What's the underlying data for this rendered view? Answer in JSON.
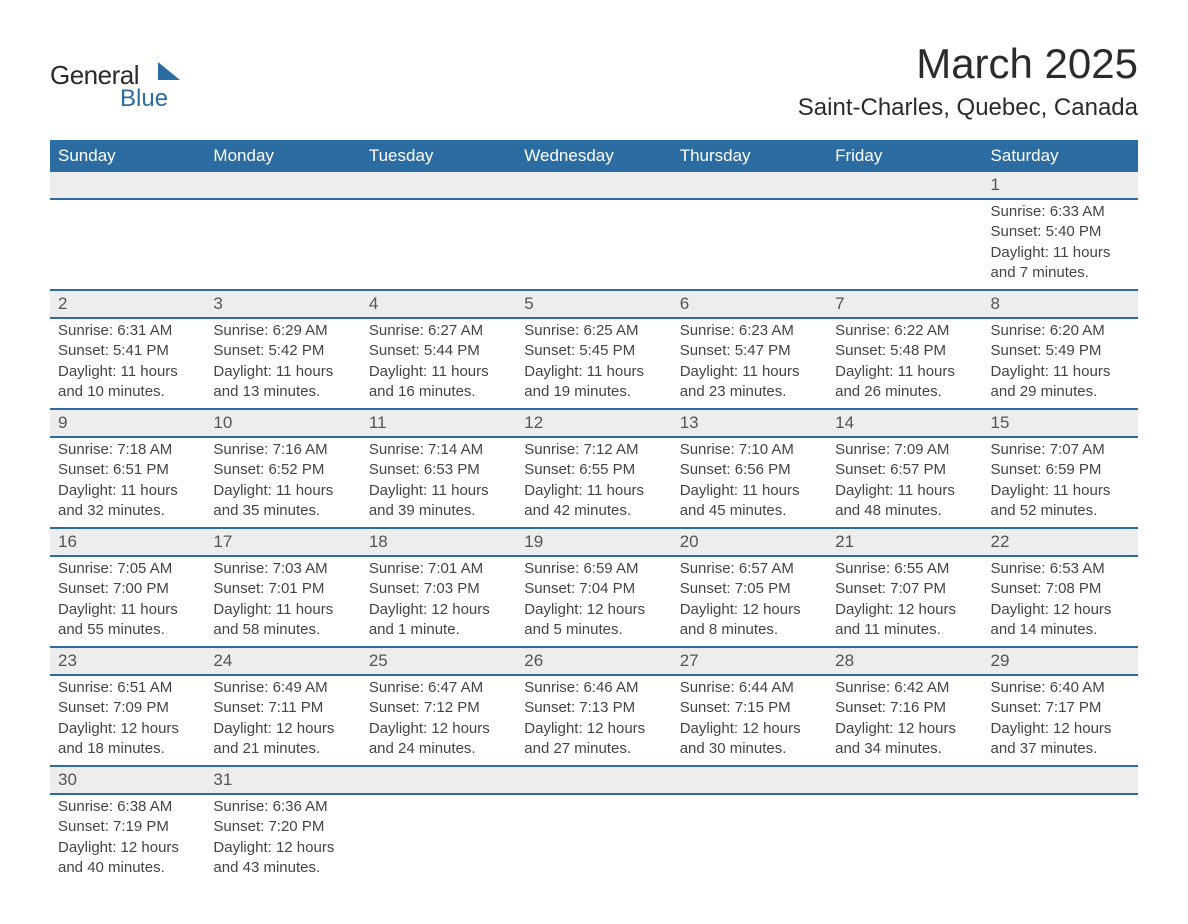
{
  "logo": {
    "line1": "General",
    "line2": "Blue",
    "brand_color": "#2b6ca3"
  },
  "title": "March 2025",
  "location": "Saint-Charles, Quebec, Canada",
  "colors": {
    "header_bg": "#2b6ca3",
    "header_text": "#ffffff",
    "daynum_bg": "#ededed",
    "daynum_text": "#555555",
    "body_text": "#444444",
    "page_bg": "#ffffff",
    "border": "#2b6ca3"
  },
  "fonts": {
    "title_size_pt": 32,
    "location_size_pt": 18,
    "header_size_pt": 13,
    "body_size_pt": 11
  },
  "layout": {
    "columns": 7,
    "rows": 6,
    "first_day_column": 6
  },
  "weekdays": [
    "Sunday",
    "Monday",
    "Tuesday",
    "Wednesday",
    "Thursday",
    "Friday",
    "Saturday"
  ],
  "days": [
    {
      "n": 1,
      "sunrise": "6:33 AM",
      "sunset": "5:40 PM",
      "daylight": "11 hours and 7 minutes."
    },
    {
      "n": 2,
      "sunrise": "6:31 AM",
      "sunset": "5:41 PM",
      "daylight": "11 hours and 10 minutes."
    },
    {
      "n": 3,
      "sunrise": "6:29 AM",
      "sunset": "5:42 PM",
      "daylight": "11 hours and 13 minutes."
    },
    {
      "n": 4,
      "sunrise": "6:27 AM",
      "sunset": "5:44 PM",
      "daylight": "11 hours and 16 minutes."
    },
    {
      "n": 5,
      "sunrise": "6:25 AM",
      "sunset": "5:45 PM",
      "daylight": "11 hours and 19 minutes."
    },
    {
      "n": 6,
      "sunrise": "6:23 AM",
      "sunset": "5:47 PM",
      "daylight": "11 hours and 23 minutes."
    },
    {
      "n": 7,
      "sunrise": "6:22 AM",
      "sunset": "5:48 PM",
      "daylight": "11 hours and 26 minutes."
    },
    {
      "n": 8,
      "sunrise": "6:20 AM",
      "sunset": "5:49 PM",
      "daylight": "11 hours and 29 minutes."
    },
    {
      "n": 9,
      "sunrise": "7:18 AM",
      "sunset": "6:51 PM",
      "daylight": "11 hours and 32 minutes."
    },
    {
      "n": 10,
      "sunrise": "7:16 AM",
      "sunset": "6:52 PM",
      "daylight": "11 hours and 35 minutes."
    },
    {
      "n": 11,
      "sunrise": "7:14 AM",
      "sunset": "6:53 PM",
      "daylight": "11 hours and 39 minutes."
    },
    {
      "n": 12,
      "sunrise": "7:12 AM",
      "sunset": "6:55 PM",
      "daylight": "11 hours and 42 minutes."
    },
    {
      "n": 13,
      "sunrise": "7:10 AM",
      "sunset": "6:56 PM",
      "daylight": "11 hours and 45 minutes."
    },
    {
      "n": 14,
      "sunrise": "7:09 AM",
      "sunset": "6:57 PM",
      "daylight": "11 hours and 48 minutes."
    },
    {
      "n": 15,
      "sunrise": "7:07 AM",
      "sunset": "6:59 PM",
      "daylight": "11 hours and 52 minutes."
    },
    {
      "n": 16,
      "sunrise": "7:05 AM",
      "sunset": "7:00 PM",
      "daylight": "11 hours and 55 minutes."
    },
    {
      "n": 17,
      "sunrise": "7:03 AM",
      "sunset": "7:01 PM",
      "daylight": "11 hours and 58 minutes."
    },
    {
      "n": 18,
      "sunrise": "7:01 AM",
      "sunset": "7:03 PM",
      "daylight": "12 hours and 1 minute."
    },
    {
      "n": 19,
      "sunrise": "6:59 AM",
      "sunset": "7:04 PM",
      "daylight": "12 hours and 5 minutes."
    },
    {
      "n": 20,
      "sunrise": "6:57 AM",
      "sunset": "7:05 PM",
      "daylight": "12 hours and 8 minutes."
    },
    {
      "n": 21,
      "sunrise": "6:55 AM",
      "sunset": "7:07 PM",
      "daylight": "12 hours and 11 minutes."
    },
    {
      "n": 22,
      "sunrise": "6:53 AM",
      "sunset": "7:08 PM",
      "daylight": "12 hours and 14 minutes."
    },
    {
      "n": 23,
      "sunrise": "6:51 AM",
      "sunset": "7:09 PM",
      "daylight": "12 hours and 18 minutes."
    },
    {
      "n": 24,
      "sunrise": "6:49 AM",
      "sunset": "7:11 PM",
      "daylight": "12 hours and 21 minutes."
    },
    {
      "n": 25,
      "sunrise": "6:47 AM",
      "sunset": "7:12 PM",
      "daylight": "12 hours and 24 minutes."
    },
    {
      "n": 26,
      "sunrise": "6:46 AM",
      "sunset": "7:13 PM",
      "daylight": "12 hours and 27 minutes."
    },
    {
      "n": 27,
      "sunrise": "6:44 AM",
      "sunset": "7:15 PM",
      "daylight": "12 hours and 30 minutes."
    },
    {
      "n": 28,
      "sunrise": "6:42 AM",
      "sunset": "7:16 PM",
      "daylight": "12 hours and 34 minutes."
    },
    {
      "n": 29,
      "sunrise": "6:40 AM",
      "sunset": "7:17 PM",
      "daylight": "12 hours and 37 minutes."
    },
    {
      "n": 30,
      "sunrise": "6:38 AM",
      "sunset": "7:19 PM",
      "daylight": "12 hours and 40 minutes."
    },
    {
      "n": 31,
      "sunrise": "6:36 AM",
      "sunset": "7:20 PM",
      "daylight": "12 hours and 43 minutes."
    }
  ],
  "labels": {
    "sunrise_prefix": "Sunrise: ",
    "sunset_prefix": "Sunset: ",
    "daylight_prefix": "Daylight: "
  }
}
